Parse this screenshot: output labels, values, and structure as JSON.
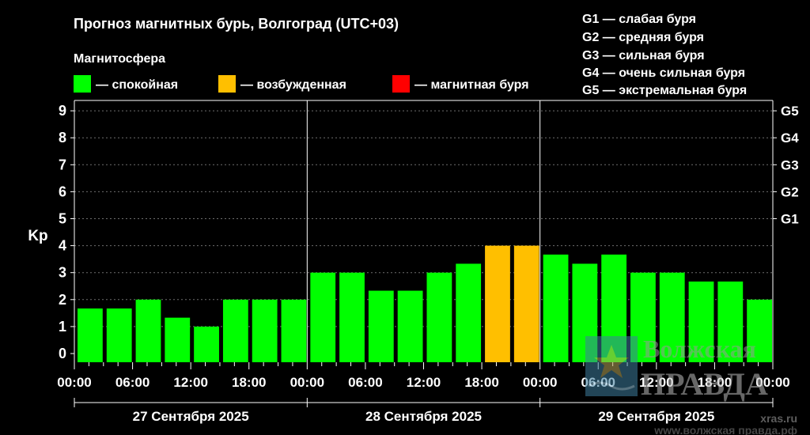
{
  "chart_data": {
    "type": "bar",
    "title": "Прогноз магнитных бурь, Волгоград (UTC+03)",
    "legend_title": "Магнитосфера",
    "legend": [
      {
        "key": "quiet",
        "label": "— спокойная",
        "color": "#00ff00"
      },
      {
        "key": "excited",
        "label": "— возбужденная",
        "color": "#ffbf00"
      },
      {
        "key": "storm",
        "label": "— магнитная буря",
        "color": "#ff0000"
      }
    ],
    "storm_legend": [
      "G1 — слабая буря",
      "G2 — средняя буря",
      "G3 — сильная буря",
      "G4 — очень сильная буря",
      "G5 — экстремальная буря"
    ],
    "ylabel": "Kp",
    "ylim": [
      0,
      9
    ],
    "y_ticks": [
      "0",
      "1",
      "2",
      "3",
      "4",
      "5",
      "6",
      "7",
      "8",
      "9"
    ],
    "right_ticks": [
      {
        "label": "G1",
        "value": 5
      },
      {
        "label": "G2",
        "value": 6
      },
      {
        "label": "G3",
        "value": 7
      },
      {
        "label": "G4",
        "value": 8
      },
      {
        "label": "G5",
        "value": 9
      }
    ],
    "x_tick_labels": [
      "00:00",
      "06:00",
      "12:00",
      "18:00",
      "00:00",
      "06:00",
      "12:00",
      "18:00",
      "00:00",
      "06:00",
      "12:00",
      "18:00",
      "00:00"
    ],
    "days": [
      "27 Сентября 2025",
      "28 Сентября 2025",
      "29 Сентября 2025"
    ],
    "values": [
      1.67,
      1.67,
      2,
      1.33,
      1,
      2,
      2,
      2,
      3,
      3,
      2.33,
      2.33,
      3,
      3.33,
      4,
      4,
      3.67,
      3.33,
      3.67,
      3,
      3,
      2.67,
      2.67,
      2
    ],
    "status": [
      "quiet",
      "quiet",
      "quiet",
      "quiet",
      "quiet",
      "quiet",
      "quiet",
      "quiet",
      "quiet",
      "quiet",
      "quiet",
      "quiet",
      "quiet",
      "quiet",
      "excited",
      "excited",
      "quiet",
      "quiet",
      "quiet",
      "quiet",
      "quiet",
      "quiet",
      "quiet",
      "quiet"
    ],
    "grid": true
  },
  "watermark": {
    "line1": "Волжская",
    "line2": "ПРАВДА",
    "site1": "xras.ru",
    "site2": "www.волжская правда.рф"
  }
}
